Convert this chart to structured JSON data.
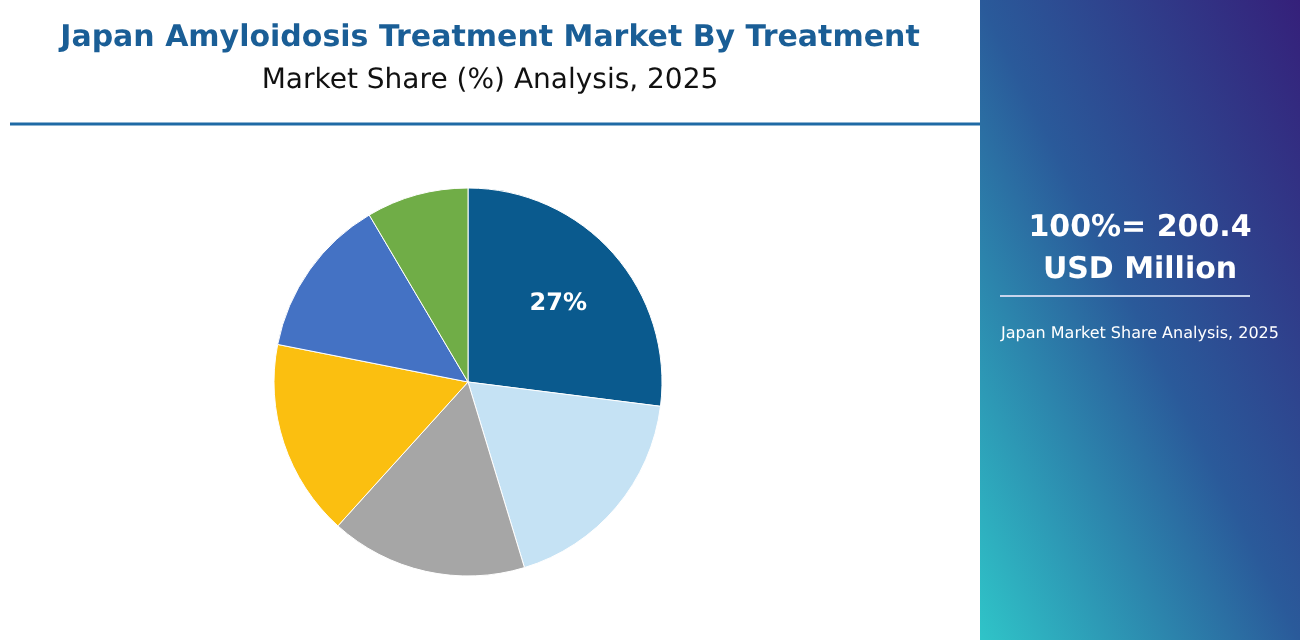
{
  "chart_data": {
    "type": "pie",
    "title": "Japan Amyloidosis Treatment Market By Treatment",
    "subtitle": "Market Share (%) Analysis, 2025",
    "categories": [
      null,
      null,
      null,
      null,
      null,
      null
    ],
    "values": [
      27,
      18.3,
      16.4,
      16.4,
      13.4,
      8.5
    ],
    "colors": [
      "#0a5a8e",
      "#c5e2f4",
      "#a6a6a6",
      "#fbbf10",
      "#4472c4",
      "#70ad47"
    ],
    "value_labels": [
      "27%",
      null,
      null,
      null,
      null,
      null
    ],
    "annotations": [
      "100%= 200.4",
      "USD Million",
      "Japan Market Share Analysis, 2025"
    ]
  }
}
